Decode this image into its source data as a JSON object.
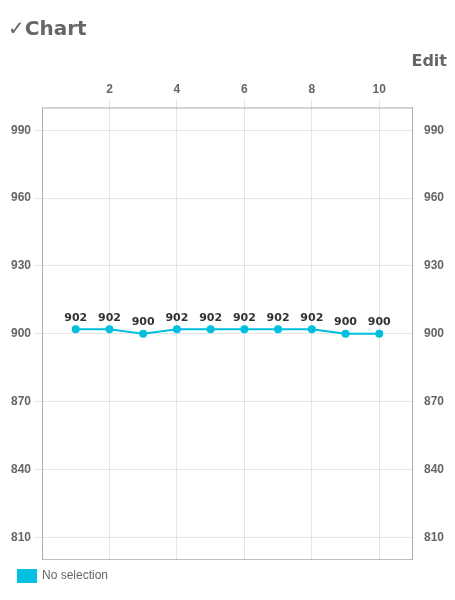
{
  "chart_data": {
    "type": "line",
    "title": "✓Chart",
    "subtitle": "Edit",
    "x": [
      1,
      2,
      3,
      4,
      5,
      6,
      7,
      8,
      9,
      10
    ],
    "series": [
      {
        "name": "No selection",
        "color": "#00BFDF",
        "values": [
          902,
          902,
          900,
          902,
          902,
          902,
          902,
          902,
          900,
          900
        ]
      }
    ],
    "xlim": [
      0.0,
      11.0
    ],
    "xticks": [
      2,
      4,
      6,
      8,
      10
    ],
    "ylim": [
      800,
      1000
    ],
    "yticks": [
      810,
      840,
      870,
      900,
      930,
      960,
      990
    ],
    "y2lim": [
      800,
      1000
    ],
    "y2ticks": [
      810,
      840,
      870,
      900,
      930,
      960,
      990
    ],
    "grid": true,
    "data_labels": true,
    "legend": "lower left",
    "marker": "circle"
  }
}
